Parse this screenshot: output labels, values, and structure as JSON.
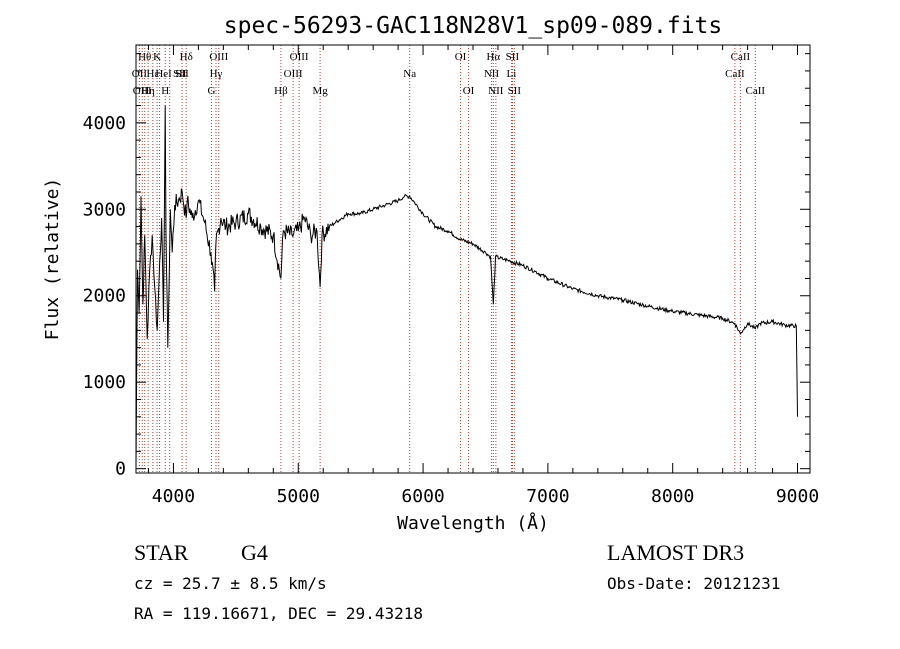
{
  "chart_data": {
    "type": "line",
    "title": "spec-56293-GAC118N28V1_sp09-089.fits",
    "xlabel": "Wavelength (Å)",
    "ylabel": "Flux (relative)",
    "xlim": [
      3700,
      9100
    ],
    "ylim": [
      -50,
      4900
    ],
    "xticks": [
      4000,
      5000,
      6000,
      7000,
      8000,
      9000
    ],
    "yticks": [
      0,
      1000,
      2000,
      3000,
      4000
    ],
    "grid": false,
    "series": [
      {
        "name": "spectrum",
        "x": [
          3700,
          3712,
          3725,
          3740,
          3755,
          3770,
          3790,
          3810,
          3830,
          3850,
          3870,
          3890,
          3905,
          3920,
          3934,
          3940,
          3955,
          3968,
          3975,
          3990,
          4010,
          4040,
          4070,
          4101,
          4110,
          4150,
          4200,
          4250,
          4300,
          4330,
          4340,
          4380,
          4420,
          4500,
          4600,
          4700,
          4800,
          4861,
          4880,
          4950,
          5000,
          5050,
          5100,
          5150,
          5175,
          5190,
          5250,
          5300,
          5400,
          5500,
          5600,
          5700,
          5800,
          5850,
          5893,
          5920,
          6000,
          6100,
          6200,
          6300,
          6400,
          6500,
          6540,
          6563,
          6580,
          6650,
          6700,
          6800,
          6900,
          7000,
          7200,
          7400,
          7600,
          7800,
          8000,
          8200,
          8400,
          8498,
          8542,
          8600,
          8662,
          8700,
          8800,
          8900,
          8990,
          9000
        ],
        "y": [
          10,
          2300,
          1800,
          3150,
          1900,
          2700,
          1500,
          2300,
          2700,
          2100,
          1600,
          2400,
          2900,
          1700,
          4200,
          2700,
          1400,
          2400,
          3000,
          2500,
          3050,
          3100,
          3200,
          2900,
          3100,
          2900,
          3100,
          2850,
          2500,
          2050,
          2600,
          2900,
          2800,
          2850,
          2950,
          2800,
          2700,
          2200,
          2750,
          2700,
          2750,
          2900,
          2700,
          2750,
          2100,
          2700,
          2800,
          2850,
          2950,
          2950,
          3000,
          3050,
          3100,
          3150,
          3150,
          3100,
          2950,
          2800,
          2750,
          2650,
          2600,
          2500,
          2450,
          1900,
          2450,
          2420,
          2400,
          2350,
          2280,
          2200,
          2080,
          2000,
          1950,
          1880,
          1820,
          1780,
          1740,
          1680,
          1560,
          1680,
          1620,
          1680,
          1700,
          1660,
          1650,
          600
        ]
      }
    ],
    "lines": [
      {
        "wl": 3727,
        "label": "OII",
        "row": 1,
        "off": 0
      },
      {
        "wl": 3750,
        "label": "OIII",
        "row": 2,
        "off": 0
      },
      {
        "wl": 3770,
        "label": "Hθ",
        "row": 0,
        "off": 0
      },
      {
        "wl": 3797,
        "label": "Hη",
        "row": 2,
        "off": 0
      },
      {
        "wl": 3835,
        "label": "Hε",
        "row": 1,
        "off": 0
      },
      {
        "wl": 3869,
        "label": "K",
        "row": 0,
        "off": 0
      },
      {
        "wl": 3889,
        "label": "HeI",
        "row": 1,
        "off": 4
      },
      {
        "wl": 3934,
        "label": "H",
        "row": 2,
        "off": 0
      },
      {
        "wl": 3970,
        "label": "SII",
        "row": 1,
        "off": 10
      },
      {
        "wl": 4069,
        "label": "SII",
        "row": 1,
        "off": 0
      },
      {
        "wl": 4102,
        "label": "Hδ",
        "row": 0,
        "off": 0
      },
      {
        "wl": 4305,
        "label": "G",
        "row": 2,
        "off": 0
      },
      {
        "wl": 4341,
        "label": "Hγ",
        "row": 1,
        "off": 0
      },
      {
        "wl": 4363,
        "label": "OIII",
        "row": 0,
        "off": 0
      },
      {
        "wl": 4861,
        "label": "Hβ",
        "row": 2,
        "off": 0
      },
      {
        "wl": 4959,
        "label": "OIII",
        "row": 1,
        "off": 0
      },
      {
        "wl": 5007,
        "label": "OIII",
        "row": 0,
        "off": 0
      },
      {
        "wl": 5175,
        "label": "Mg",
        "row": 2,
        "off": 0
      },
      {
        "wl": 5893,
        "label": "Na",
        "row": 1,
        "off": 0
      },
      {
        "wl": 6300,
        "label": "OI",
        "row": 0,
        "off": 0
      },
      {
        "wl": 6364,
        "label": "OI",
        "row": 2,
        "off": 0
      },
      {
        "wl": 6548,
        "label": "NII",
        "row": 1,
        "off": 0
      },
      {
        "wl": 6563,
        "label": "Hα",
        "row": 0,
        "off": 0
      },
      {
        "wl": 6583,
        "label": "NII",
        "row": 2,
        "off": 0
      },
      {
        "wl": 6708,
        "label": "Li",
        "row": 1,
        "off": 0
      },
      {
        "wl": 6716,
        "label": "SII",
        "row": 0,
        "off": 0
      },
      {
        "wl": 6731,
        "label": "SII",
        "row": 2,
        "off": 0
      },
      {
        "wl": 8498,
        "label": "CaII",
        "row": 1,
        "off": 0
      },
      {
        "wl": 8542,
        "label": "CaII",
        "row": 0,
        "off": 0
      },
      {
        "wl": 8662,
        "label": "CaII",
        "row": 2,
        "off": 0
      }
    ]
  },
  "info": {
    "class": "STAR",
    "subclass": "G4",
    "survey": "LAMOST DR3",
    "cz": "cz = 25.7 ± 8.5 km/s",
    "obs_date": "Obs-Date: 20121231",
    "coords": "RA = 119.16671, DEC =  29.43218"
  },
  "colors": {
    "axis": "#000000",
    "spectrum": "#000000",
    "line_marker": "#c0392b"
  }
}
